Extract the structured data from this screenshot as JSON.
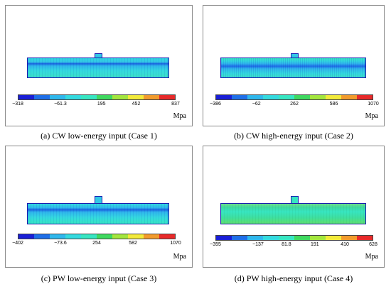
{
  "panels": [
    {
      "caption": "(a) CW low-energy input (Case 1)",
      "unit": "Mpa",
      "ticks": [
        "−318",
        "−61.3",
        "195",
        "452",
        "837"
      ]
    },
    {
      "caption": "(b) CW high-energy input (Case 2)",
      "unit": "Mpa",
      "ticks": [
        "−386",
        "−62",
        "262",
        "586",
        "1070"
      ]
    },
    {
      "caption": "(c) PW low-energy input (Case 3)",
      "unit": "Mpa",
      "ticks": [
        "−402",
        "−73.6",
        "254",
        "582",
        "1070"
      ]
    },
    {
      "caption": "(d) PW high-energy input (Case 4)",
      "unit": "Mpa",
      "ticks": [
        "−355",
        "−137",
        "81.8",
        "191",
        "410",
        "628"
      ]
    }
  ],
  "colormap": [
    "#1a1fd6",
    "#1f6fe8",
    "#2fb7ec",
    "#34dadf",
    "#37e6c2",
    "#3fd95f",
    "#a3e63d",
    "#f2ea3a",
    "#f29b2c",
    "#e82a2a"
  ]
}
